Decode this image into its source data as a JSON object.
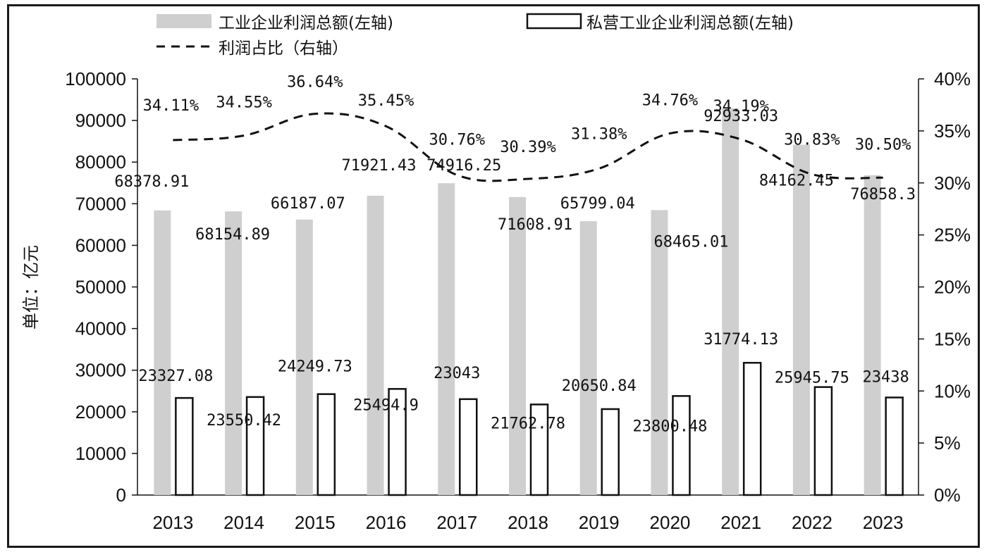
{
  "chart_data": {
    "type": "bar",
    "categories": [
      "2013",
      "2014",
      "2015",
      "2016",
      "2017",
      "2018",
      "2019",
      "2020",
      "2021",
      "2022",
      "2023"
    ],
    "series": [
      {
        "name": "工业企业利润总额(左轴)",
        "axis": "left",
        "style": "gray-filled-bar",
        "values": [
          68378.91,
          68154.89,
          66187.07,
          71921.43,
          74916.25,
          71608.91,
          65799.04,
          68465.01,
          92933.03,
          84162.45,
          76858.3
        ],
        "labels": [
          "68378.91",
          "68154.89",
          "66187.07",
          "71921.43",
          "74916.25",
          "71608.91",
          "65799.04",
          "68465.01",
          "92933.03",
          "84162.45",
          "76858.3"
        ]
      },
      {
        "name": "私营工业企业利润总额(左轴)",
        "axis": "left",
        "style": "white-outlined-bar",
        "values": [
          23327.08,
          23550.42,
          24249.73,
          25494.9,
          23043,
          21762.78,
          20650.84,
          23800.48,
          31774.13,
          25945.75,
          23438
        ],
        "labels": [
          "23327.08",
          "23550.42",
          "24249.73",
          "25494.9",
          "23043",
          "21762.78",
          "20650.84",
          "23800.48",
          "31774.13",
          "25945.75",
          "23438"
        ]
      },
      {
        "name": "利润占比（右轴）",
        "axis": "right",
        "style": "dashed-line",
        "values": [
          34.11,
          34.55,
          36.64,
          35.45,
          30.76,
          30.39,
          31.38,
          34.76,
          34.19,
          30.83,
          30.5
        ],
        "labels": [
          "34.11%",
          "34.55%",
          "36.64%",
          "35.45%",
          "30.76%",
          "30.39%",
          "31.38%",
          "34.76%",
          "34.19%",
          "30.83%",
          "30.50%"
        ]
      }
    ],
    "y_left": {
      "label": "单位：亿元",
      "range": [
        0,
        100000
      ],
      "ticks": [
        "0",
        "10000",
        "20000",
        "30000",
        "40000",
        "50000",
        "60000",
        "70000",
        "80000",
        "90000",
        "100000"
      ]
    },
    "y_right": {
      "range": [
        0,
        40
      ],
      "ticks": [
        "0%",
        "5%",
        "10%",
        "15%",
        "20%",
        "25%",
        "30%",
        "35%",
        "40%"
      ]
    },
    "grid": false,
    "legend_position": "top",
    "colors": {
      "gray_bar": "#cfcfcf",
      "outline": "#111111",
      "line": "#111111"
    }
  }
}
